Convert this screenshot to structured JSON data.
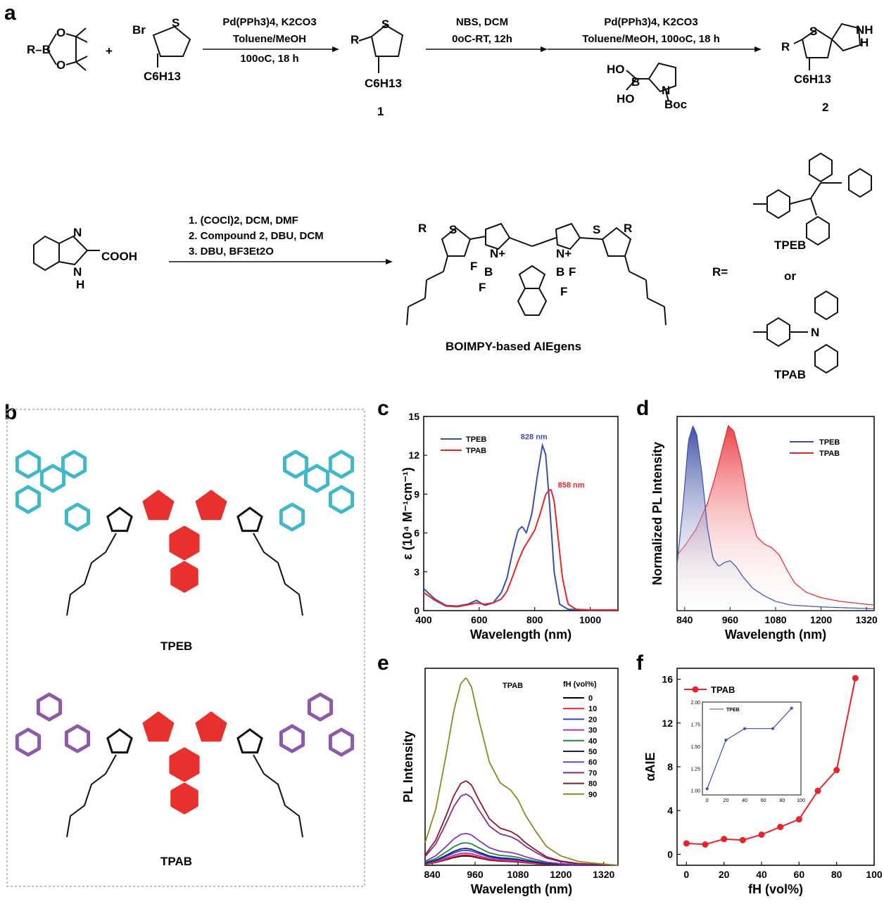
{
  "panels": {
    "a": "a",
    "b": "b",
    "c": "c",
    "d": "d",
    "e": "e",
    "f": "f"
  },
  "scheme": {
    "step1": {
      "line1": "Pd(PPh3)4, K2CO3",
      "line2": "Toluene/MeOH",
      "line3": "100oC, 18 h"
    },
    "step2": {
      "line1": "NBS, DCM",
      "line2": "0oC-RT, 12h"
    },
    "step3": {
      "line1": "Pd(PPh3)4, K2CO3",
      "line2": "Toluene/MeOH, 100oC, 18 h"
    },
    "step4": {
      "line1": "1. (COCl)2, DCM, DMF",
      "line2": "2. Compound 2, DBU, DCM",
      "line3": "3. DBU, BF3Et2O"
    },
    "labels": {
      "r_boronate": "R–B",
      "o": "O",
      "br": "Br",
      "s": "S",
      "hexyl": "C6H13",
      "compound1": "1",
      "compound2": "2",
      "nh": "NH",
      "n_boc": "N",
      "boc": "Boc",
      "ho1": "HO",
      "ho2": "HO",
      "b": "B",
      "cooh": "COOH",
      "benz_n": "N",
      "benz_nh": "N",
      "benz_h": "H",
      "r": "R",
      "product_name": "BOIMPY-based AIEgens",
      "r_equals": "R=",
      "or": "or",
      "tpeb": "TPEB",
      "tpab": "TPAB",
      "plus": "+",
      "f": "F",
      "n_plus": "N+"
    }
  },
  "panel_b": {
    "tpeb": "TPEB",
    "tpab": "TPAB"
  },
  "colors": {
    "blue": "#3a4fa8",
    "red": "#e8242a",
    "tpe_highlight": "#3fb8c9",
    "tpa_highlight": "#8e59a8",
    "core_highlight": "#e8302e"
  },
  "chart_data": [
    {
      "panel": "c",
      "type": "line",
      "xlabel": "Wavelength (nm)",
      "ylabel": "ε (10⁴ M⁻¹cm⁻¹)",
      "xlim": [
        400,
        1100
      ],
      "ylim": [
        0,
        15
      ],
      "xticks": [
        400,
        600,
        800,
        1000
      ],
      "yticks": [
        0,
        3,
        6,
        9,
        12,
        15
      ],
      "legend": "top-left",
      "annotations": [
        {
          "text": "828 nm",
          "series": "TPEB",
          "x": 828,
          "y": 12.8
        },
        {
          "text": "858 nm",
          "series": "TPAB",
          "x": 858,
          "y": 9.4
        }
      ],
      "series": [
        {
          "name": "TPEB",
          "x": [
            400,
            440,
            480,
            520,
            560,
            590,
            620,
            650,
            680,
            700,
            720,
            740,
            755,
            770,
            790,
            810,
            828,
            840,
            855,
            870,
            890,
            920,
            1000,
            1100
          ],
          "y": [
            1.7,
            0.9,
            0.4,
            0.35,
            0.5,
            0.8,
            0.4,
            0.6,
            1.4,
            2.5,
            4.5,
            6.2,
            6.5,
            6.0,
            7.5,
            10.5,
            12.8,
            12.0,
            7.8,
            3.0,
            0.5,
            0.1,
            0.05,
            0.05
          ]
        },
        {
          "name": "TPAB",
          "x": [
            400,
            440,
            480,
            520,
            560,
            590,
            620,
            650,
            680,
            700,
            720,
            740,
            760,
            780,
            800,
            820,
            840,
            858,
            870,
            885,
            900,
            920,
            950,
            1000,
            1100
          ],
          "y": [
            1.4,
            0.8,
            0.35,
            0.3,
            0.45,
            0.6,
            0.5,
            0.6,
            0.9,
            1.5,
            2.6,
            3.8,
            4.8,
            5.5,
            6.2,
            7.5,
            9.0,
            9.4,
            8.5,
            5.5,
            2.5,
            0.5,
            0.1,
            0.05,
            0.05
          ]
        }
      ]
    },
    {
      "panel": "d",
      "type": "area",
      "xlabel": "Wavelength (nm)",
      "ylabel": "Normalized PL Intensity",
      "xlim": [
        820,
        1340
      ],
      "ylim": [
        0,
        1.05
      ],
      "xticks": [
        840,
        960,
        1080,
        1200,
        1320
      ],
      "legend": "top-right",
      "series": [
        {
          "name": "TPEB",
          "x": [
            820,
            835,
            850,
            862,
            872,
            885,
            900,
            915,
            930,
            945,
            960,
            975,
            995,
            1020,
            1050,
            1080,
            1120,
            1200,
            1340
          ],
          "y": [
            0.25,
            0.55,
            0.92,
            1.0,
            0.95,
            0.75,
            0.45,
            0.28,
            0.24,
            0.26,
            0.27,
            0.24,
            0.18,
            0.12,
            0.08,
            0.05,
            0.03,
            0.02,
            0.01
          ]
        },
        {
          "name": "TPAB",
          "x": [
            820,
            840,
            870,
            900,
            920,
            940,
            955,
            970,
            990,
            1010,
            1030,
            1050,
            1070,
            1090,
            1110,
            1130,
            1160,
            1200,
            1250,
            1340
          ],
          "y": [
            0.3,
            0.35,
            0.44,
            0.58,
            0.72,
            0.88,
            1.0,
            0.97,
            0.8,
            0.55,
            0.4,
            0.36,
            0.34,
            0.3,
            0.22,
            0.15,
            0.1,
            0.07,
            0.05,
            0.03
          ]
        }
      ]
    },
    {
      "panel": "e",
      "type": "line",
      "xlabel": "Wavelength (nm)",
      "ylabel": "PL Intensity",
      "xlim": [
        820,
        1360
      ],
      "ylim": [
        0,
        1.05
      ],
      "xticks": [
        840,
        960,
        1080,
        1200,
        1320
      ],
      "legend": "right",
      "legend_title_compound": "TPAB",
      "legend_title": "fH (vol%)",
      "x": [
        820,
        850,
        880,
        900,
        920,
        935,
        950,
        970,
        1000,
        1030,
        1060,
        1080,
        1100,
        1130,
        1160,
        1200,
        1250,
        1300,
        1360
      ],
      "shape": [
        0.12,
        0.3,
        0.6,
        0.82,
        0.97,
        1.0,
        0.95,
        0.78,
        0.55,
        0.44,
        0.4,
        0.35,
        0.27,
        0.18,
        0.1,
        0.05,
        0.02,
        0.01,
        0.0
      ],
      "series": [
        {
          "name": "0",
          "color": "#000000",
          "scale": 0.05
        },
        {
          "name": "10",
          "color": "#e8242a",
          "scale": 0.055
        },
        {
          "name": "20",
          "color": "#2b46c4",
          "scale": 0.08
        },
        {
          "name": "30",
          "color": "#c02bb0",
          "scale": 0.065
        },
        {
          "name": "40",
          "color": "#1a8a40",
          "scale": 0.12
        },
        {
          "name": "50",
          "color": "#1c1c7a",
          "scale": 0.09
        },
        {
          "name": "60",
          "color": "#7a3ec0",
          "scale": 0.17
        },
        {
          "name": "70",
          "color": "#882a8a",
          "scale": 0.38
        },
        {
          "name": "80",
          "color": "#8b1a2a",
          "scale": 0.45
        },
        {
          "name": "90",
          "color": "#8a8a1e",
          "scale": 1.0
        }
      ]
    },
    {
      "panel": "f",
      "type": "line",
      "xlabel": "fH (vol%)",
      "ylabel": "αAIE",
      "xlim": [
        -5,
        100
      ],
      "ylim": [
        -1,
        17
      ],
      "xticks": [
        0,
        20,
        40,
        60,
        80,
        100
      ],
      "yticks": [
        0,
        4,
        8,
        12,
        16
      ],
      "legend": "top-left",
      "series": [
        {
          "name": "TPAB",
          "x": [
            0,
            10,
            20,
            30,
            40,
            50,
            60,
            70,
            80,
            90
          ],
          "y": [
            1.0,
            0.9,
            1.4,
            1.3,
            1.8,
            2.5,
            3.2,
            5.8,
            7.7,
            16.1
          ]
        }
      ],
      "inset": {
        "type": "line",
        "xlim": [
          -5,
          100
        ],
        "ylim": [
          0.95,
          2.0
        ],
        "xticks": [
          0,
          20,
          40,
          60,
          80,
          100
        ],
        "yticks": [
          "1.00",
          "1.25",
          "1.50",
          "1.75",
          "2.00"
        ],
        "ytickvals": [
          1.0,
          1.25,
          1.5,
          1.75,
          2.0
        ],
        "series": [
          {
            "name": "TPEB",
            "x": [
              0,
              20,
              40,
              70,
              90
            ],
            "y": [
              1.02,
              1.57,
              1.7,
              1.7,
              1.93
            ]
          }
        ]
      }
    }
  ]
}
